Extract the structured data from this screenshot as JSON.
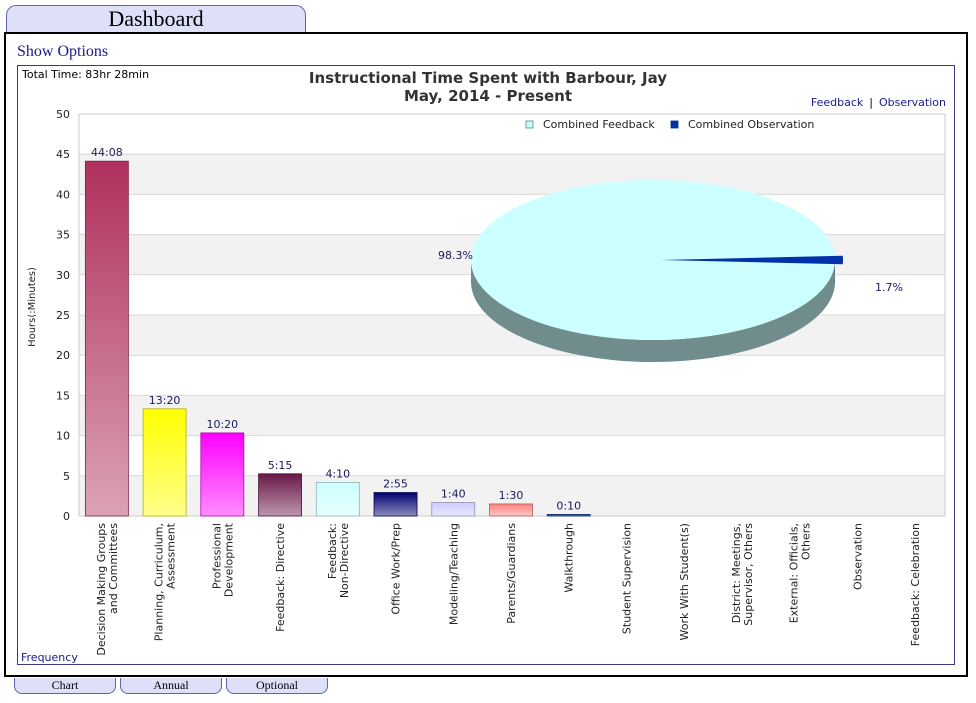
{
  "header": {
    "tab_label": "Dashboard"
  },
  "options": {
    "show_options_label": "Show Options"
  },
  "summary": {
    "total_time": "Total Time: 83hr 28min"
  },
  "links": {
    "feedback": "Feedback",
    "separator": "|",
    "observation": "Observation"
  },
  "footer": {
    "frequency_label": "Frequency"
  },
  "bottom_tabs": [
    {
      "label": "Chart"
    },
    {
      "label": "Annual"
    },
    {
      "label": "Optional"
    }
  ],
  "colors": {
    "decision": "#b0305e",
    "planning": "#ffff00",
    "professional": "#ff00ff",
    "directive": "#6a1848",
    "nondirective": "#ccffff",
    "office": "#00006e",
    "modeling": "#ccccff",
    "parents": "#ff8080",
    "walkthrough": "#003399",
    "pie_feedback": "#ccffff",
    "pie_observation": "#0033aa"
  },
  "chart_data": [
    {
      "type": "bar",
      "title": "Instructional Time Spent with Barbour, Jay",
      "subtitle": "May, 2014 - Present",
      "xlabel": "",
      "ylabel": "Hours(:Minutes)",
      "ylim": [
        0,
        50
      ],
      "yticks": [
        0,
        5,
        10,
        15,
        20,
        25,
        30,
        35,
        40,
        45,
        50
      ],
      "grid": true,
      "categories": [
        "Decision Making Groups and Committees",
        "Planning, Curriculum, Assessment",
        "Professional Development",
        "Feedback: Directive",
        "Feedback: Non-Directive",
        "Office Work/Prep",
        "Modeling/Teaching",
        "Parents/Guardians",
        "Walkthrough",
        "Student Supervision",
        "Work With Student(s)",
        "District: Meetings, Supervisor, Others",
        "External: Officials, Others",
        "Observation",
        "Feedback: Celebration"
      ],
      "category_lines": [
        [
          "Decision Making Groups",
          "and Committees"
        ],
        [
          "Planning, Curriculum,",
          "Assessment"
        ],
        [
          "Professional",
          "Development"
        ],
        [
          "Feedback: Directive"
        ],
        [
          "Feedback:",
          "Non-Directive"
        ],
        [
          "Office Work/Prep"
        ],
        [
          "Modeling/Teaching"
        ],
        [
          "Parents/Guardians"
        ],
        [
          "Walkthrough"
        ],
        [
          "Student Supervision"
        ],
        [
          "Work With Student(s)"
        ],
        [
          "District: Meetings,",
          "Supervisor, Others"
        ],
        [
          "External: Officials,",
          "Others"
        ],
        [
          "Observation"
        ],
        [
          "Feedback: Celebration"
        ]
      ],
      "values": [
        44.133,
        13.333,
        10.333,
        5.25,
        4.167,
        2.917,
        1.667,
        1.5,
        0.167,
        0,
        0,
        0,
        0,
        0,
        0
      ],
      "data_labels": [
        "44:08",
        "13:20",
        "10:20",
        "5:15",
        "4:10",
        "2:55",
        "1:40",
        "1:30",
        "0:10",
        "",
        "",
        "",
        "",
        "",
        ""
      ],
      "bar_colors": [
        "#b0305e",
        "#ffff00",
        "#ff00ff",
        "#6a1848",
        "#ccffff",
        "#00006e",
        "#ccccff",
        "#ff8080",
        "#003399"
      ]
    },
    {
      "type": "pie",
      "labels": [
        "Combined Feedback",
        "Combined Observation"
      ],
      "values": [
        98.3,
        1.7
      ],
      "data_labels": [
        "98.3%",
        "1.7%"
      ],
      "colors": [
        "#ccffff",
        "#0033aa"
      ],
      "legend": "top"
    }
  ]
}
